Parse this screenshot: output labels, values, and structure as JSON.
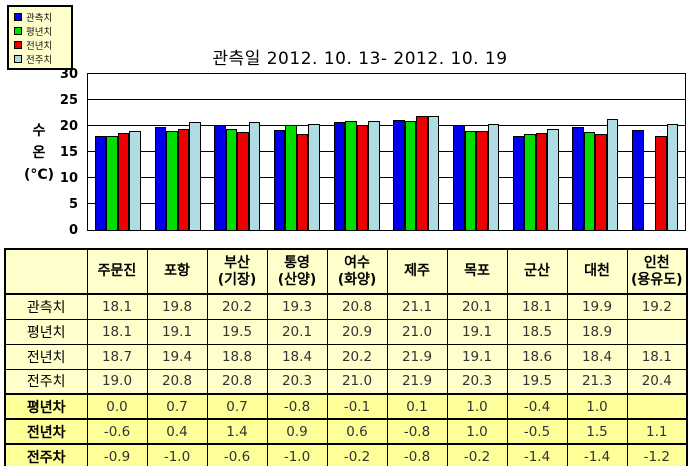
{
  "chart_data": {
    "type": "bar",
    "title": "관측일 2012. 10. 13-  2012. 10. 19",
    "categories": [
      "주문진",
      "포항",
      "부산(기장)",
      "통영(산양)",
      "여수(화양)",
      "제주",
      "목포",
      "군산",
      "대천",
      "인천(용유도)"
    ],
    "series": [
      {
        "name": "관측치",
        "color": "#0000EE",
        "values": [
          18.1,
          19.8,
          20.2,
          19.3,
          20.8,
          21.1,
          20.1,
          18.1,
          19.9,
          19.2
        ]
      },
      {
        "name": "평년치",
        "color": "#00DD00",
        "values": [
          18.1,
          19.1,
          19.5,
          20.1,
          20.9,
          21.0,
          19.1,
          18.5,
          18.9,
          null
        ]
      },
      {
        "name": "전년치",
        "color": "#EE0000",
        "values": [
          18.7,
          19.4,
          18.8,
          18.4,
          20.2,
          21.9,
          19.1,
          18.6,
          18.4,
          18.1
        ]
      },
      {
        "name": "전주치",
        "color": "#AEDCE2",
        "values": [
          19.0,
          20.8,
          20.8,
          20.3,
          21.0,
          21.9,
          20.3,
          19.5,
          21.3,
          20.4
        ]
      }
    ],
    "xlabel": "",
    "ylabel": "수온 (°C)",
    "ylabel_lines": [
      "수",
      "온",
      "(°C)"
    ],
    "ylim": [
      0,
      30
    ],
    "yticks": [
      0,
      5,
      10,
      15,
      20,
      25,
      30
    ],
    "grid": true,
    "legend_position": "top-left"
  },
  "table": {
    "corner_label": "",
    "columns": [
      "주문진",
      "포항",
      "부산\n(기장)",
      "통영\n(산양)",
      "여수\n(화양)",
      "제주",
      "목포",
      "군산",
      "대천",
      "인천\n(용유도)"
    ],
    "rows": [
      {
        "label": "관측치",
        "style": "normal",
        "values": [
          "18.1",
          "19.8",
          "20.2",
          "19.3",
          "20.8",
          "21.1",
          "20.1",
          "18.1",
          "19.9",
          "19.2"
        ]
      },
      {
        "label": "평년치",
        "style": "normal",
        "values": [
          "18.1",
          "19.1",
          "19.5",
          "20.1",
          "20.9",
          "21.0",
          "19.1",
          "18.5",
          "18.9",
          ""
        ]
      },
      {
        "label": "전년치",
        "style": "normal",
        "values": [
          "18.7",
          "19.4",
          "18.8",
          "18.4",
          "20.2",
          "21.9",
          "19.1",
          "18.6",
          "18.4",
          "18.1"
        ]
      },
      {
        "label": "전주치",
        "style": "normal",
        "values": [
          "19.0",
          "20.8",
          "20.8",
          "20.3",
          "21.0",
          "21.9",
          "20.3",
          "19.5",
          "21.3",
          "20.4"
        ]
      },
      {
        "label": "평년차",
        "style": "diff",
        "values": [
          "0.0",
          "0.7",
          "0.7",
          "-0.8",
          "-0.1",
          "0.1",
          "1.0",
          "-0.4",
          "1.0",
          ""
        ]
      },
      {
        "label": "전년차",
        "style": "diff",
        "values": [
          "-0.6",
          "0.4",
          "1.4",
          "0.9",
          "0.6",
          "-0.8",
          "1.0",
          "-0.5",
          "1.5",
          "1.1"
        ]
      },
      {
        "label": "전주차",
        "style": "diff",
        "values": [
          "-0.9",
          "-1.0",
          "-0.6",
          "-1.0",
          "-0.2",
          "-0.8",
          "-0.2",
          "-1.4",
          "-1.4",
          "-1.2"
        ]
      }
    ]
  },
  "colors": {
    "bar_observed": "#0000EE",
    "bar_normal_year": "#00DD00",
    "bar_last_year": "#EE0000",
    "bar_last_week": "#AEDCE2",
    "legend_bg": "#FFFFCC",
    "table_bg_light": "#FFFFCC",
    "table_bg_bright": "#FFFF99"
  }
}
